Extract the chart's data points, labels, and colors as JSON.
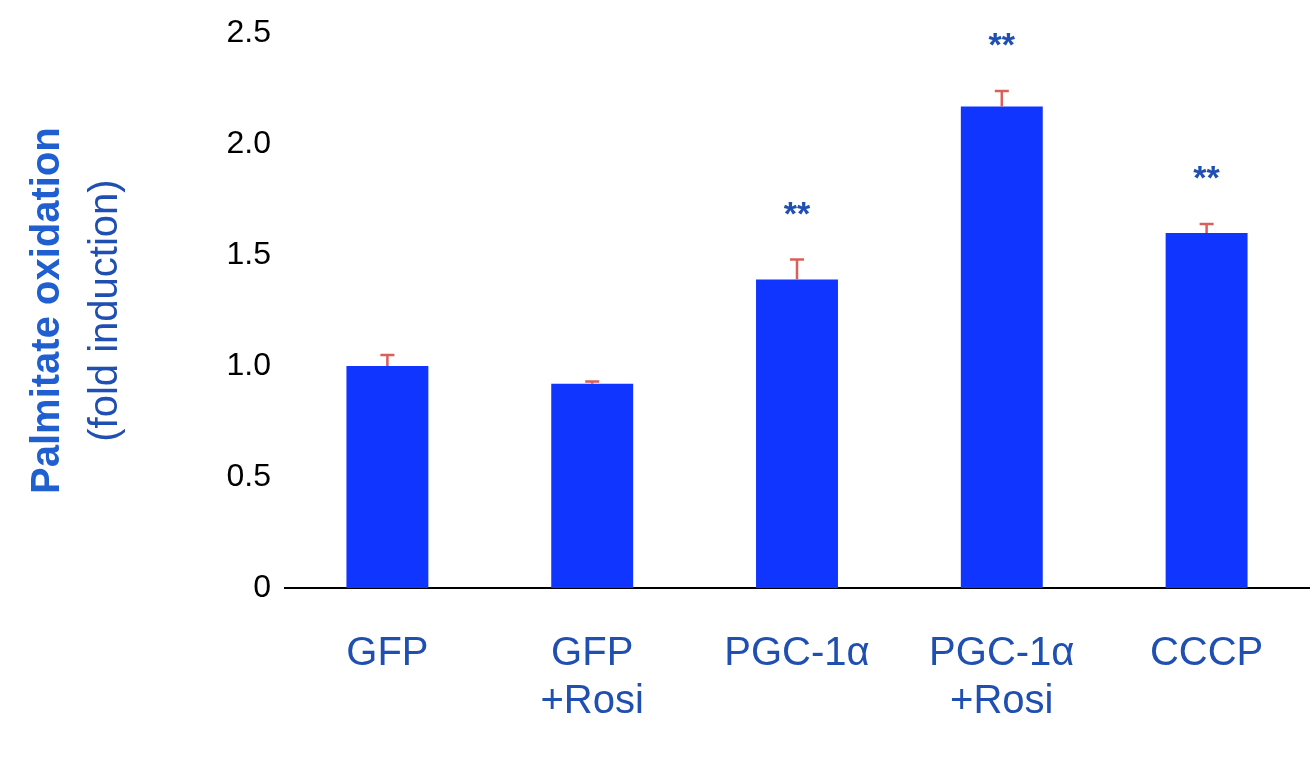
{
  "chart_data": {
    "type": "bar",
    "ylabel": "Palmitate oxidation\n(fold induction)",
    "categories": [
      "GFP",
      "GFP +Rosi",
      "PGC-1α",
      "PGC-1α +Rosi",
      "CCCP"
    ],
    "values": [
      1.0,
      0.92,
      1.39,
      2.17,
      1.6
    ],
    "errors": [
      [
        1.0,
        1.05
      ],
      [
        0.92,
        0.93
      ],
      [
        1.39,
        1.48
      ],
      [
        2.17,
        2.24
      ],
      [
        1.6,
        1.64
      ]
    ],
    "color": "#0f35ff",
    "ylim": [
      0,
      2.5
    ],
    "yticks": [
      "0",
      {
        "value": 0.5,
        "label": "0.5"
      },
      {
        "value": 1,
        "label": "1.0"
      },
      {
        "value": 1.5,
        "label": "1.5"
      },
      {
        "value": 2,
        "label": "2.0"
      },
      {
        "value": 2.5,
        "label": "2.5"
      }
    ],
    "annotations": [
      {
        "text": "**",
        "x": "PGC-1α",
        "y": 1.39
      },
      {
        "text": "**",
        "x": "PGC-1α +Rosi",
        "y": 2.17
      },
      {
        "text": "**",
        "x": "CCCP",
        "y": 1.6
      }
    ],
    "grid": false,
    "legend": false
  }
}
